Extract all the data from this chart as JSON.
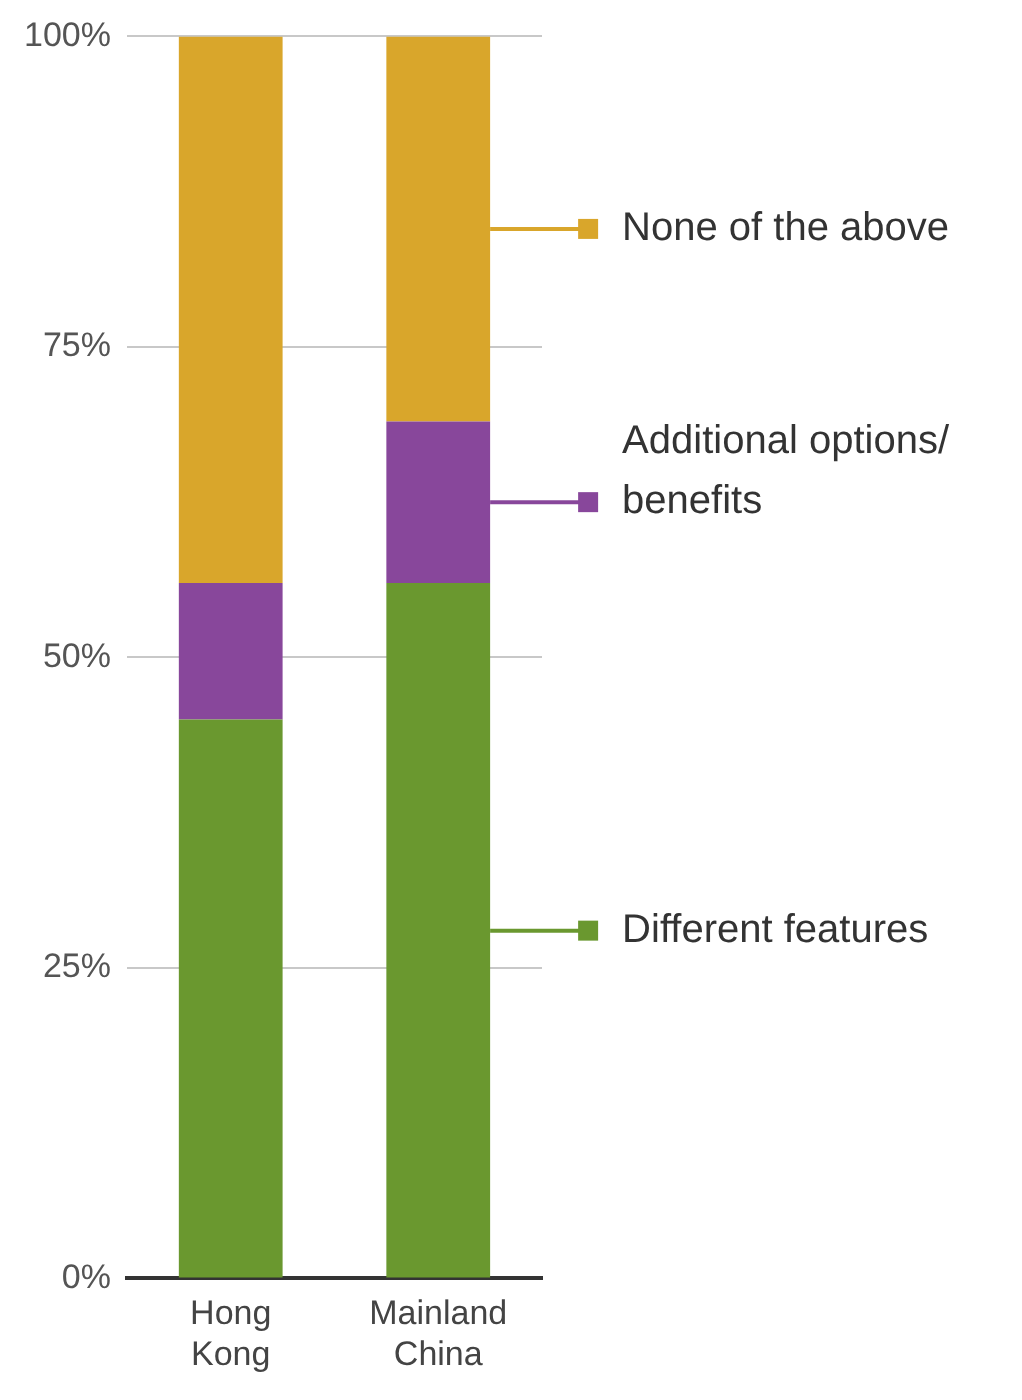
{
  "chart_data": {
    "type": "bar",
    "stacked": true,
    "categories": [
      "Hong Kong",
      "Mainland China"
    ],
    "series": [
      {
        "name": "Different features",
        "color": "#6a982f",
        "values": [
          45,
          56
        ]
      },
      {
        "name": "Additional options/ benefits",
        "color": "#88479b",
        "values": [
          11,
          13
        ]
      },
      {
        "name": "None of the above",
        "color": "#d9a62b",
        "values": [
          44,
          31
        ]
      }
    ],
    "ylim": [
      0,
      100
    ],
    "yticks": [
      {
        "value": 0,
        "label": "0%"
      },
      {
        "value": 25,
        "label": "25%"
      },
      {
        "value": 50,
        "label": "50%"
      },
      {
        "value": 75,
        "label": "75%"
      },
      {
        "value": 100,
        "label": "100%"
      }
    ],
    "grid": "y",
    "legend": "right"
  }
}
